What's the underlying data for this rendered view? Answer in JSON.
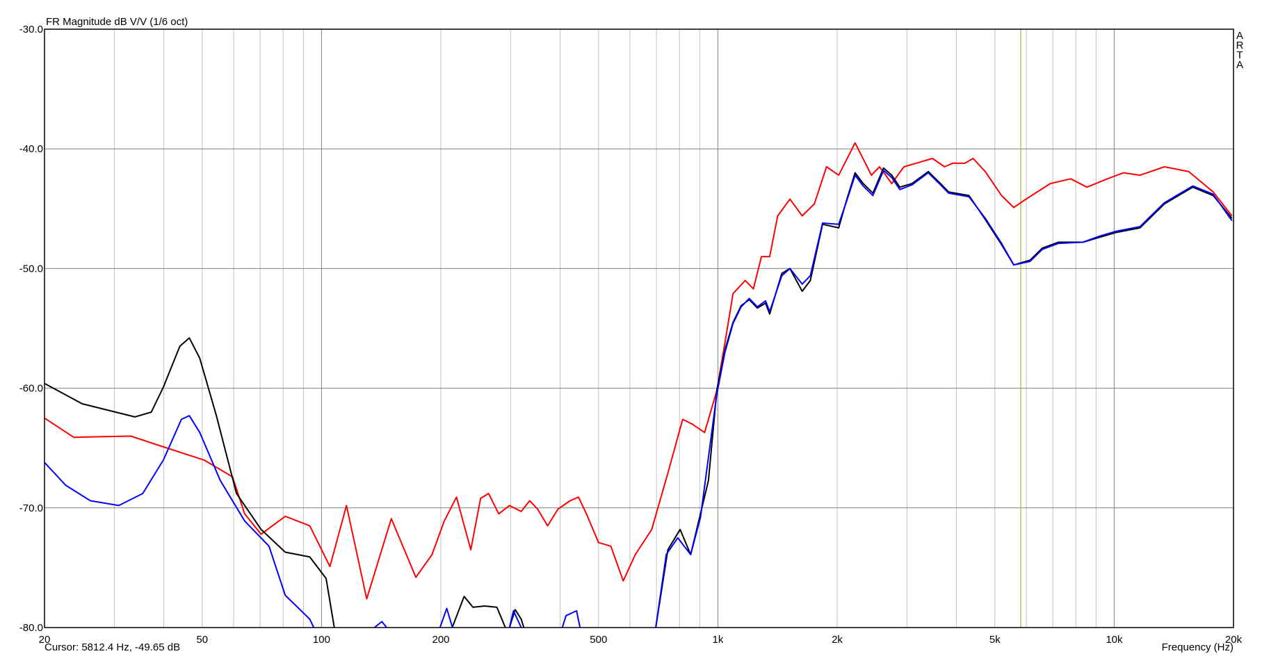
{
  "chart_data": {
    "type": "line",
    "title": "FR Magnitude dB V/V (1/6 oct)",
    "xlabel": "Frequency (Hz)",
    "ylabel": "",
    "x_scale": "log",
    "xlim": [
      20,
      20000
    ],
    "ylim": [
      -80,
      -30
    ],
    "grid": true,
    "x_ticks": [
      {
        "v": 20,
        "label": "20"
      },
      {
        "v": 50,
        "label": "50"
      },
      {
        "v": 100,
        "label": "100"
      },
      {
        "v": 200,
        "label": "200"
      },
      {
        "v": 500,
        "label": "500"
      },
      {
        "v": 1000,
        "label": "1k"
      },
      {
        "v": 2000,
        "label": "2k"
      },
      {
        "v": 5000,
        "label": "5k"
      },
      {
        "v": 10000,
        "label": "10k"
      },
      {
        "v": 20000,
        "label": "20k"
      }
    ],
    "y_ticks": [
      {
        "v": -30,
        "label": "-30.0"
      },
      {
        "v": -40,
        "label": "-40.0"
      },
      {
        "v": -50,
        "label": "-50.0"
      },
      {
        "v": -60,
        "label": "-60.0"
      },
      {
        "v": -70,
        "label": "-70.0"
      },
      {
        "v": -80,
        "label": "-80.0"
      }
    ],
    "watermark": "ARTA",
    "cursor": {
      "frequency": 5812.4,
      "value": -49.65,
      "text": "Cursor: 5812.4 Hz, -49.65 dB",
      "color": "#b0b030"
    },
    "series": [
      {
        "color": "#ff0000",
        "points": [
          [
            20,
            -62.5
          ],
          [
            23.7,
            -64.1
          ],
          [
            33,
            -64.0
          ],
          [
            39.9,
            -64.9
          ],
          [
            50.5,
            -66.0
          ],
          [
            59.6,
            -67.4
          ],
          [
            64,
            -70.5
          ],
          [
            70.4,
            -72.2
          ],
          [
            81,
            -70.7
          ],
          [
            93.4,
            -71.5
          ],
          [
            105,
            -74.9
          ],
          [
            115.6,
            -69.8
          ],
          [
            130,
            -77.6
          ],
          [
            150,
            -70.9
          ],
          [
            173,
            -75.8
          ],
          [
            190,
            -73.9
          ],
          [
            204,
            -71.1
          ],
          [
            219,
            -69.1
          ],
          [
            238,
            -73.5
          ],
          [
            252,
            -69.2
          ],
          [
            264,
            -68.8
          ],
          [
            280,
            -70.5
          ],
          [
            298,
            -69.8
          ],
          [
            319,
            -70.3
          ],
          [
            335,
            -69.4
          ],
          [
            351,
            -70.1
          ],
          [
            372,
            -71.5
          ],
          [
            395,
            -70.1
          ],
          [
            424,
            -69.4
          ],
          [
            445,
            -69.1
          ],
          [
            466,
            -70.5
          ],
          [
            500,
            -72.9
          ],
          [
            537,
            -73.2
          ],
          [
            577,
            -76.1
          ],
          [
            619,
            -73.9
          ],
          [
            681,
            -71.8
          ],
          [
            748,
            -67.1
          ],
          [
            815,
            -62.6
          ],
          [
            862,
            -63.0
          ],
          [
            926,
            -63.7
          ],
          [
            994,
            -60.2
          ],
          [
            1042,
            -56.2
          ],
          [
            1092,
            -52.1
          ],
          [
            1172,
            -51.0
          ],
          [
            1229,
            -51.7
          ],
          [
            1288,
            -49.0
          ],
          [
            1351,
            -49.0
          ],
          [
            1416,
            -45.6
          ],
          [
            1520,
            -44.2
          ],
          [
            1632,
            -45.6
          ],
          [
            1752,
            -44.6
          ],
          [
            1880,
            -41.5
          ],
          [
            2018,
            -42.2
          ],
          [
            2220,
            -39.5
          ],
          [
            2440,
            -42.2
          ],
          [
            2558,
            -41.5
          ],
          [
            2746,
            -42.9
          ],
          [
            2948,
            -41.5
          ],
          [
            3164,
            -41.2
          ],
          [
            3478,
            -40.8
          ],
          [
            3732,
            -41.5
          ],
          [
            3912,
            -41.2
          ],
          [
            4202,
            -41.2
          ],
          [
            4406,
            -40.8
          ],
          [
            4728,
            -41.9
          ],
          [
            5198,
            -43.9
          ],
          [
            5580,
            -44.9
          ],
          [
            5992,
            -44.2
          ],
          [
            6902,
            -42.9
          ],
          [
            7768,
            -42.5
          ],
          [
            8540,
            -43.2
          ],
          [
            9612,
            -42.5
          ],
          [
            10566,
            -42.0
          ],
          [
            11614,
            -42.2
          ],
          [
            13384,
            -41.5
          ],
          [
            15418,
            -41.9
          ],
          [
            17772,
            -43.6
          ],
          [
            19812,
            -45.6
          ]
        ]
      },
      {
        "color": "#000000",
        "points": [
          [
            20,
            -59.6
          ],
          [
            24.9,
            -61.3
          ],
          [
            33.8,
            -62.4
          ],
          [
            37.2,
            -62.0
          ],
          [
            39.9,
            -59.9
          ],
          [
            43.9,
            -56.5
          ],
          [
            46.4,
            -55.8
          ],
          [
            49.3,
            -57.5
          ],
          [
            54.3,
            -62.3
          ],
          [
            61,
            -68.8
          ],
          [
            70.4,
            -71.8
          ],
          [
            81,
            -73.7
          ],
          [
            93.4,
            -74.1
          ],
          [
            102.7,
            -75.9
          ],
          [
            107.7,
            -80
          ],
          null,
          [
            213.7,
            -80
          ],
          [
            229,
            -77.4
          ],
          [
            241,
            -78.3
          ],
          [
            258,
            -78.2
          ],
          [
            277,
            -78.3
          ],
          [
            291,
            -80
          ],
          null,
          [
            298,
            -80
          ],
          [
            308,
            -78.5
          ],
          [
            319,
            -79.3
          ],
          [
            324,
            -80
          ],
          null,
          [
            697,
            -80
          ],
          [
            748,
            -73.5
          ],
          [
            803,
            -71.8
          ],
          [
            854,
            -73.9
          ],
          [
            904,
            -70.5
          ],
          [
            947,
            -67.7
          ],
          [
            994,
            -60.2
          ],
          [
            1042,
            -56.8
          ],
          [
            1092,
            -54.5
          ],
          [
            1145,
            -53.1
          ],
          [
            1200,
            -52.6
          ],
          [
            1258,
            -53.3
          ],
          [
            1319,
            -52.9
          ],
          [
            1351,
            -53.8
          ],
          [
            1450,
            -50.4
          ],
          [
            1520,
            -50.0
          ],
          [
            1632,
            -51.9
          ],
          [
            1711,
            -51.0
          ],
          [
            1837,
            -46.3
          ],
          [
            2018,
            -46.6
          ],
          [
            2116,
            -44.2
          ],
          [
            2220,
            -42.0
          ],
          [
            2326,
            -42.9
          ],
          [
            2462,
            -43.7
          ],
          [
            2618,
            -41.6
          ],
          [
            2746,
            -42.2
          ],
          [
            2878,
            -43.2
          ],
          [
            3090,
            -42.9
          ],
          [
            3396,
            -41.9
          ],
          [
            3646,
            -42.9
          ],
          [
            3822,
            -43.6
          ],
          [
            4302,
            -43.9
          ],
          [
            4728,
            -45.9
          ],
          [
            5198,
            -48.0
          ],
          [
            5580,
            -49.7
          ],
          [
            6136,
            -49.3
          ],
          [
            6584,
            -48.3
          ],
          [
            7238,
            -47.8
          ],
          [
            8342,
            -47.8
          ],
          [
            9166,
            -47.4
          ],
          [
            10080,
            -47.0
          ],
          [
            11614,
            -46.6
          ],
          [
            13384,
            -44.6
          ],
          [
            15788,
            -43.2
          ],
          [
            17772,
            -43.9
          ],
          [
            19812,
            -45.8
          ]
        ]
      },
      {
        "color": "#0000ff",
        "points": [
          [
            20,
            -66.2
          ],
          [
            22.6,
            -68.1
          ],
          [
            26.1,
            -69.4
          ],
          [
            30.8,
            -69.8
          ],
          [
            35.4,
            -68.8
          ],
          [
            39.9,
            -66.0
          ],
          [
            44.3,
            -62.6
          ],
          [
            46.4,
            -62.3
          ],
          [
            49.3,
            -63.7
          ],
          [
            55.5,
            -67.7
          ],
          [
            64,
            -71.1
          ],
          [
            73.7,
            -73.2
          ],
          [
            81,
            -77.3
          ],
          [
            93.4,
            -79.3
          ],
          [
            95.6,
            -80
          ],
          null,
          [
            136,
            -80
          ],
          [
            142,
            -79.5
          ],
          [
            146,
            -80
          ],
          null,
          [
            199,
            -80
          ],
          [
            207,
            -78.4
          ],
          [
            214,
            -80
          ],
          null,
          [
            298,
            -80
          ],
          [
            305,
            -78.6
          ],
          [
            319,
            -80
          ],
          null,
          [
            405,
            -80
          ],
          [
            414,
            -79.0
          ],
          [
            440,
            -78.6
          ],
          [
            449,
            -80
          ],
          null,
          [
            697,
            -80
          ],
          [
            741,
            -73.9
          ],
          [
            792,
            -72.5
          ],
          [
            854,
            -73.9
          ],
          [
            904,
            -70.8
          ],
          [
            994,
            -60.5
          ],
          [
            1042,
            -57.0
          ],
          [
            1092,
            -54.6
          ],
          [
            1145,
            -53.2
          ],
          [
            1200,
            -52.5
          ],
          [
            1258,
            -53.2
          ],
          [
            1319,
            -52.7
          ],
          [
            1351,
            -53.6
          ],
          [
            1450,
            -50.6
          ],
          [
            1520,
            -50.0
          ],
          [
            1632,
            -51.3
          ],
          [
            1711,
            -50.6
          ],
          [
            1837,
            -46.2
          ],
          [
            2018,
            -46.3
          ],
          [
            2116,
            -44.3
          ],
          [
            2220,
            -42.2
          ],
          [
            2326,
            -43.1
          ],
          [
            2462,
            -43.9
          ],
          [
            2618,
            -41.8
          ],
          [
            2746,
            -42.4
          ],
          [
            2878,
            -43.4
          ],
          [
            3090,
            -43.0
          ],
          [
            3396,
            -42.0
          ],
          [
            3646,
            -43.0
          ],
          [
            3822,
            -43.7
          ],
          [
            4302,
            -44.0
          ],
          [
            4728,
            -45.8
          ],
          [
            5198,
            -47.9
          ],
          [
            5580,
            -49.7
          ],
          [
            6136,
            -49.4
          ],
          [
            6584,
            -48.4
          ],
          [
            7238,
            -47.9
          ],
          [
            8342,
            -47.8
          ],
          [
            9166,
            -47.3
          ],
          [
            10080,
            -46.9
          ],
          [
            11614,
            -46.5
          ],
          [
            13384,
            -44.5
          ],
          [
            15788,
            -43.1
          ],
          [
            17772,
            -43.8
          ],
          [
            19812,
            -46.0
          ]
        ]
      }
    ]
  }
}
